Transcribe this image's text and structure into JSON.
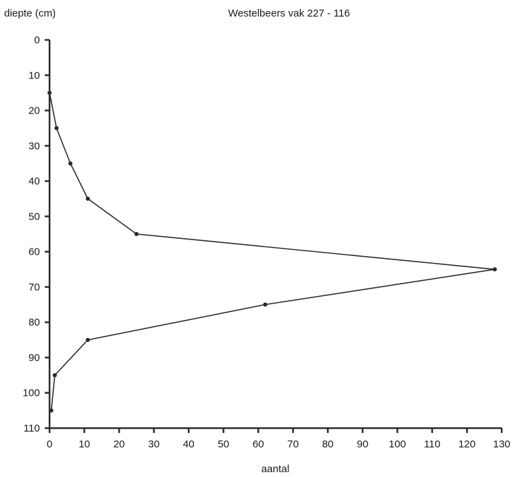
{
  "chart_data": {
    "type": "line",
    "title": "Westelbeers vak 227 - 116",
    "xlabel": "aantal",
    "ylabel": "diepte (cm)",
    "xlim": [
      0,
      130
    ],
    "ylim": [
      0,
      110
    ],
    "y_inverted": true,
    "grid": false,
    "x_ticks": [
      0,
      10,
      20,
      30,
      40,
      50,
      60,
      70,
      80,
      90,
      100,
      110,
      120,
      130
    ],
    "y_ticks": [
      0,
      10,
      20,
      30,
      40,
      50,
      60,
      70,
      80,
      90,
      100,
      110
    ],
    "series": [
      {
        "x": [
          0,
          2,
          6,
          11,
          25,
          128,
          62,
          11,
          1.5,
          0.5
        ],
        "y": [
          15,
          25,
          35,
          45,
          55,
          65,
          75,
          85,
          95,
          105
        ]
      }
    ]
  }
}
